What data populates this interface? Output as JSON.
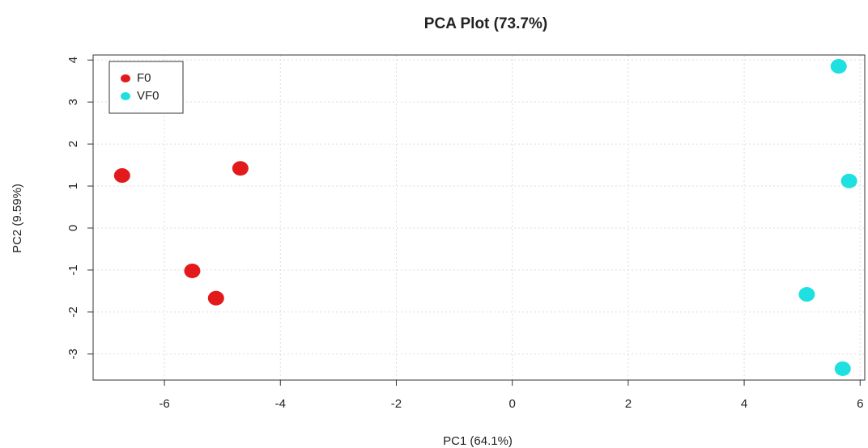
{
  "chart_data": {
    "type": "scatter",
    "title": "PCA Plot (73.7%)",
    "x_label": "PC1 (64.1%)",
    "y_label": "PC2 (9.59%)",
    "series": [
      {
        "name": "F0",
        "color": "#e31a1c",
        "x": [
          -6.73,
          -4.69,
          -5.52,
          -5.11
        ],
        "values": [
          1.25,
          1.42,
          -1.02,
          -1.67
        ]
      },
      {
        "name": "VF0",
        "color": "#1fe0e0",
        "x": [
          5.63,
          5.81,
          5.08,
          5.7
        ],
        "values": [
          3.85,
          1.12,
          -1.58,
          -3.35
        ]
      }
    ],
    "xlim": [
      -7.23,
      6.08
    ],
    "xticks": [
      -6,
      -4,
      -2,
      0,
      2,
      4,
      6
    ],
    "ylim": [
      -3.62,
      4.12
    ],
    "yticks": [
      -3,
      -2,
      -1,
      0,
      1,
      2,
      3,
      4
    ],
    "grid": true,
    "legend": "top-left"
  }
}
